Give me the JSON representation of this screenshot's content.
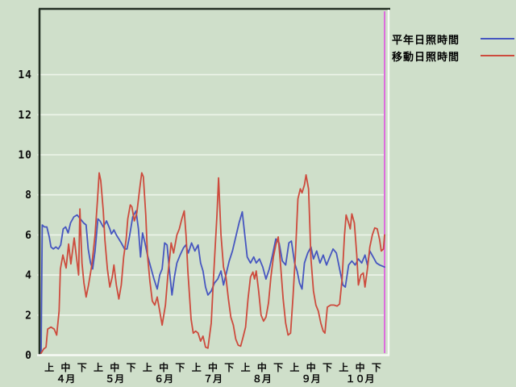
{
  "colors": {
    "background": "#cfdfca",
    "grid": "#eef5ea",
    "axis_dark": "#222e22",
    "axis_light": "#f8fbf6",
    "text": "#0a0a0a"
  },
  "chart_data": {
    "type": "line",
    "title": "",
    "xlabel": "",
    "ylabel": "",
    "grid": true,
    "legend_position": "top-right-outside",
    "x_axis": {
      "month_labels": [
        "４月",
        "５月",
        "６月",
        "７月",
        "８月",
        "９月",
        "１０月"
      ],
      "period_labels": [
        "上",
        "中",
        "下"
      ],
      "days_per_period": 10,
      "total_days": 210
    },
    "y_axis": {
      "ticks": [
        0,
        2,
        4,
        6,
        8,
        10,
        12,
        14
      ],
      "min": 0,
      "max": 14
    },
    "cursor": {
      "color": "#dd6cdd",
      "position_day": 210
    },
    "series": [
      {
        "name": "平年日照時間",
        "id": "normal-sunshine",
        "color": "#4656c0",
        "points": [
          [
            0,
            0.1
          ],
          [
            0.7,
            6.5
          ],
          [
            2,
            6.4
          ],
          [
            3.5,
            6.4
          ],
          [
            5,
            5.9
          ],
          [
            6,
            5.4
          ],
          [
            7.5,
            5.3
          ],
          [
            9,
            5.4
          ],
          [
            10.5,
            5.3
          ],
          [
            12,
            5.5
          ],
          [
            13.5,
            6.3
          ],
          [
            15,
            6.4
          ],
          [
            16.5,
            6.1
          ],
          [
            18,
            6.6
          ],
          [
            20,
            6.9
          ],
          [
            22,
            7.0
          ],
          [
            24,
            6.8
          ],
          [
            26,
            6.6
          ],
          [
            27.5,
            6.5
          ],
          [
            28.8,
            5.3
          ],
          [
            30.2,
            4.6
          ],
          [
            31.5,
            4.3
          ],
          [
            33,
            5.2
          ],
          [
            34.7,
            6.8
          ],
          [
            36,
            6.7
          ],
          [
            38,
            6.4
          ],
          [
            40,
            6.7
          ],
          [
            42,
            6.3
          ],
          [
            43,
            6.05
          ],
          [
            44.5,
            6.25
          ],
          [
            46,
            6.0
          ],
          [
            47.5,
            5.8
          ],
          [
            49,
            5.6
          ],
          [
            51,
            5.3
          ],
          [
            52.5,
            5.3
          ],
          [
            54,
            5.9
          ],
          [
            56,
            6.9
          ],
          [
            58,
            7.2
          ],
          [
            59.5,
            6.3
          ],
          [
            60.8,
            4.9
          ],
          [
            62,
            6.1
          ],
          [
            63.5,
            5.6
          ],
          [
            65,
            5.0
          ],
          [
            67,
            4.4
          ],
          [
            69,
            3.8
          ],
          [
            71,
            3.3
          ],
          [
            72.5,
            4.0
          ],
          [
            74,
            4.3
          ],
          [
            75.5,
            5.6
          ],
          [
            77,
            5.5
          ],
          [
            78.5,
            4.2
          ],
          [
            80,
            3.0
          ],
          [
            81.5,
            3.9
          ],
          [
            83,
            4.6
          ],
          [
            85,
            5.0
          ],
          [
            87,
            5.35
          ],
          [
            88.5,
            5.5
          ],
          [
            90,
            5.1
          ],
          [
            92,
            5.6
          ],
          [
            94,
            5.2
          ],
          [
            96,
            5.5
          ],
          [
            97.5,
            4.6
          ],
          [
            99,
            4.2
          ],
          [
            100.5,
            3.4
          ],
          [
            102,
            3.0
          ],
          [
            104,
            3.2
          ],
          [
            106,
            3.6
          ],
          [
            108,
            3.8
          ],
          [
            110,
            4.2
          ],
          [
            111.5,
            3.5
          ],
          [
            113,
            4.0
          ],
          [
            115,
            4.7
          ],
          [
            117,
            5.2
          ],
          [
            119,
            5.9
          ],
          [
            121,
            6.6
          ],
          [
            123,
            7.15
          ],
          [
            124.5,
            6.0
          ],
          [
            126,
            4.9
          ],
          [
            128,
            4.6
          ],
          [
            130,
            4.9
          ],
          [
            131.5,
            4.6
          ],
          [
            133.5,
            4.8
          ],
          [
            135.5,
            4.4
          ],
          [
            137.5,
            3.8
          ],
          [
            139.5,
            4.3
          ],
          [
            141.5,
            5.0
          ],
          [
            143.5,
            5.8
          ],
          [
            145.5,
            5.6
          ],
          [
            147.5,
            4.7
          ],
          [
            149.5,
            4.5
          ],
          [
            151.5,
            5.6
          ],
          [
            153,
            5.7
          ],
          [
            155,
            4.6
          ],
          [
            156.5,
            4.2
          ],
          [
            158,
            3.6
          ],
          [
            159.5,
            3.3
          ],
          [
            161,
            4.6
          ],
          [
            163,
            5.1
          ],
          [
            165,
            5.4
          ],
          [
            166.5,
            4.8
          ],
          [
            168.5,
            5.2
          ],
          [
            170.5,
            4.6
          ],
          [
            172.5,
            5.0
          ],
          [
            174.5,
            4.5
          ],
          [
            176.5,
            4.9
          ],
          [
            178.5,
            5.3
          ],
          [
            180.5,
            5.1
          ],
          [
            182.5,
            4.3
          ],
          [
            184.5,
            3.5
          ],
          [
            186,
            3.4
          ],
          [
            188,
            4.5
          ],
          [
            190,
            4.7
          ],
          [
            192,
            4.5
          ],
          [
            194,
            4.8
          ],
          [
            196,
            4.6
          ],
          [
            198,
            5.0
          ],
          [
            199.5,
            4.5
          ],
          [
            201,
            5.2
          ],
          [
            203,
            4.9
          ],
          [
            205,
            4.6
          ],
          [
            207,
            4.5
          ],
          [
            210,
            4.4
          ]
        ]
      },
      {
        "name": "移動日照時間",
        "id": "moving-sunshine",
        "color": "#cd4b3d",
        "points": [
          [
            0,
            0.1
          ],
          [
            1.5,
            0.3
          ],
          [
            3,
            0.4
          ],
          [
            4,
            1.3
          ],
          [
            6,
            1.4
          ],
          [
            8,
            1.3
          ],
          [
            9.5,
            1.0
          ],
          [
            11,
            2.2
          ],
          [
            11.8,
            4.3
          ],
          [
            13.3,
            5.0
          ],
          [
            15.3,
            4.35
          ],
          [
            16.8,
            5.55
          ],
          [
            18.2,
            4.55
          ],
          [
            20.2,
            5.85
          ],
          [
            22.2,
            4.5
          ],
          [
            22.9,
            4.0
          ],
          [
            23.7,
            7.3
          ],
          [
            25,
            4.6
          ],
          [
            26.2,
            3.6
          ],
          [
            27.5,
            2.9
          ],
          [
            29,
            3.5
          ],
          [
            31,
            4.5
          ],
          [
            33,
            6.0
          ],
          [
            34.5,
            7.8
          ],
          [
            35.5,
            9.1
          ],
          [
            36.5,
            8.7
          ],
          [
            38,
            7.2
          ],
          [
            39,
            5.75
          ],
          [
            40.5,
            4.3
          ],
          [
            42,
            3.4
          ],
          [
            43.5,
            3.9
          ],
          [
            44.5,
            4.5
          ],
          [
            46,
            3.5
          ],
          [
            47.5,
            2.8
          ],
          [
            49,
            3.5
          ],
          [
            50.5,
            4.9
          ],
          [
            52,
            5.8
          ],
          [
            53,
            6.8
          ],
          [
            54.5,
            7.5
          ],
          [
            55.5,
            7.4
          ],
          [
            57,
            6.7
          ],
          [
            58.5,
            7.1
          ],
          [
            60.5,
            8.45
          ],
          [
            61.5,
            9.1
          ],
          [
            62.5,
            8.9
          ],
          [
            64,
            7.0
          ],
          [
            65,
            5.0
          ],
          [
            66.5,
            3.7
          ],
          [
            68,
            2.7
          ],
          [
            69.5,
            2.5
          ],
          [
            71,
            2.9
          ],
          [
            72.5,
            2.2
          ],
          [
            74,
            1.5
          ],
          [
            76,
            2.5
          ],
          [
            77.5,
            4.0
          ],
          [
            79.5,
            5.6
          ],
          [
            81,
            5.1
          ],
          [
            83,
            6.0
          ],
          [
            84.5,
            6.3
          ],
          [
            86,
            6.8
          ],
          [
            87.5,
            7.2
          ],
          [
            88.7,
            5.9
          ],
          [
            89.7,
            4.2
          ],
          [
            91.7,
            1.8
          ],
          [
            93,
            1.1
          ],
          [
            94.5,
            1.2
          ],
          [
            96,
            1.1
          ],
          [
            97.5,
            0.7
          ],
          [
            99,
            0.95
          ],
          [
            100.5,
            0.4
          ],
          [
            102,
            0.35
          ],
          [
            104,
            1.6
          ],
          [
            105.5,
            4.0
          ],
          [
            107.5,
            7.0
          ],
          [
            108.5,
            8.85
          ],
          [
            110,
            6.0
          ],
          [
            111.5,
            4.4
          ],
          [
            113,
            3.9
          ],
          [
            114.5,
            2.8
          ],
          [
            116,
            1.9
          ],
          [
            117.5,
            1.5
          ],
          [
            119,
            0.8
          ],
          [
            120.5,
            0.5
          ],
          [
            122,
            0.45
          ],
          [
            123.5,
            0.9
          ],
          [
            125,
            1.4
          ],
          [
            126.5,
            2.8
          ],
          [
            128,
            3.9
          ],
          [
            129.5,
            4.15
          ],
          [
            130.5,
            3.8
          ],
          [
            131.5,
            4.2
          ],
          [
            133,
            3.2
          ],
          [
            134.5,
            2.0
          ],
          [
            136,
            1.7
          ],
          [
            137.5,
            1.9
          ],
          [
            139,
            2.6
          ],
          [
            140.5,
            3.9
          ],
          [
            142,
            4.9
          ],
          [
            143.5,
            5.5
          ],
          [
            145,
            5.9
          ],
          [
            146.5,
            4.4
          ],
          [
            148,
            2.8
          ],
          [
            149.5,
            1.6
          ],
          [
            151,
            1.0
          ],
          [
            152.5,
            1.1
          ],
          [
            154,
            2.9
          ],
          [
            155.5,
            5.0
          ],
          [
            157,
            7.8
          ],
          [
            158.5,
            8.3
          ],
          [
            159.5,
            8.1
          ],
          [
            161,
            8.5
          ],
          [
            162,
            9.0
          ],
          [
            163.5,
            8.3
          ],
          [
            165,
            4.8
          ],
          [
            166.5,
            3.2
          ],
          [
            168,
            2.5
          ],
          [
            169.5,
            2.2
          ],
          [
            171,
            1.6
          ],
          [
            172.5,
            1.2
          ],
          [
            173.5,
            1.1
          ],
          [
            175,
            2.4
          ],
          [
            177,
            2.5
          ],
          [
            179,
            2.5
          ],
          [
            181,
            2.45
          ],
          [
            182.5,
            2.55
          ],
          [
            184,
            3.8
          ],
          [
            185.5,
            6.0
          ],
          [
            186.5,
            7.0
          ],
          [
            188,
            6.6
          ],
          [
            189,
            6.3
          ],
          [
            190,
            7.05
          ],
          [
            191.5,
            6.6
          ],
          [
            193,
            5.0
          ],
          [
            194,
            3.5
          ],
          [
            195.5,
            4.0
          ],
          [
            197,
            4.1
          ],
          [
            198,
            3.4
          ],
          [
            199.5,
            4.3
          ],
          [
            201,
            5.4
          ],
          [
            202.5,
            6.0
          ],
          [
            204,
            6.35
          ],
          [
            205.5,
            6.3
          ],
          [
            207,
            5.75
          ],
          [
            208,
            5.2
          ],
          [
            209.3,
            5.3
          ],
          [
            210,
            6.0
          ]
        ]
      }
    ]
  }
}
